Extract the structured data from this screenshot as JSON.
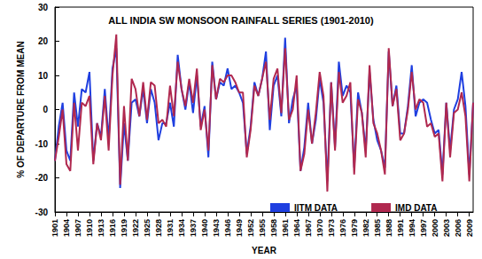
{
  "chart_data": {
    "type": "line",
    "title": "ALL INDIA SW MONSOON RAINFALL SERIES (1901-2010)",
    "x_label": "YEAR",
    "y_label": "% OF DEPARTURE FROM MEAN",
    "categories": [
      "1901",
      null,
      null,
      "1904",
      null,
      null,
      "1907",
      null,
      null,
      "1910",
      null,
      null,
      "1913",
      null,
      null,
      "1916",
      null,
      null,
      "1919",
      null,
      null,
      "1922",
      null,
      null,
      "1925",
      null,
      null,
      "1928",
      null,
      null,
      "1931",
      null,
      null,
      "1934",
      null,
      null,
      "1937",
      null,
      null,
      "1940",
      null,
      null,
      "1943",
      null,
      null,
      "1946",
      null,
      null,
      "1949",
      null,
      null,
      "1952",
      null,
      null,
      "1955",
      null,
      null,
      "1958",
      null,
      null,
      "1961",
      null,
      null,
      "1964",
      null,
      null,
      "1967",
      null,
      null,
      "1970",
      null,
      null,
      "1973",
      null,
      null,
      "1976",
      null,
      null,
      "1979",
      null,
      null,
      "1982",
      null,
      null,
      "1985",
      null,
      null,
      "1988",
      null,
      null,
      "1991",
      null,
      null,
      "1994",
      null,
      null,
      "1997",
      null,
      null,
      "2000",
      null,
      null,
      "2003",
      null,
      null,
      "2006",
      null,
      null,
      "2009",
      null
    ],
    "series": [
      {
        "name": "IITM DATA",
        "color": "#1f3fe0",
        "values": [
          -15,
          -5,
          2,
          -12,
          -15,
          5,
          -5,
          6,
          5,
          11,
          -15,
          -4,
          -8,
          6,
          -9,
          12,
          18,
          -23,
          -4,
          -15,
          2,
          3,
          -2,
          6,
          -4,
          6,
          2,
          -9,
          -4,
          -4,
          2,
          -5,
          16,
          6,
          0,
          8,
          -1,
          10,
          -5,
          1,
          -14,
          14,
          3,
          8,
          7,
          12,
          6,
          7,
          5,
          2,
          -13,
          -5,
          8,
          4,
          9,
          17,
          -6,
          7,
          10,
          -2,
          21,
          -4,
          3,
          7,
          -18,
          -11,
          2,
          -10,
          -3,
          9,
          2,
          -21,
          8,
          -11,
          14,
          4,
          7,
          5,
          -17,
          5,
          -1,
          -12,
          11,
          -3,
          -9,
          -12,
          -17,
          17,
          1,
          7,
          -7,
          -7,
          1,
          13,
          -2,
          2,
          3,
          2,
          -3,
          -7,
          -6,
          -19,
          2,
          -12,
          0,
          3,
          11,
          1,
          -19,
          2
        ]
      },
      {
        "name": "IMD DATA",
        "color": "#b0284f",
        "values": [
          -15,
          -8,
          0,
          -16,
          -18,
          2,
          -12,
          2,
          1,
          4,
          -16,
          -4,
          -9,
          4,
          -12,
          10,
          22,
          -22,
          1,
          -15,
          9,
          6,
          -2,
          8,
          -3,
          8,
          7,
          -4,
          -3,
          -5,
          7,
          -2,
          14,
          6,
          1,
          9,
          2,
          12,
          -6,
          0,
          -12,
          13,
          3,
          9,
          8,
          10,
          10,
          8,
          5,
          5,
          -14,
          -6,
          7,
          4,
          9,
          14,
          -3,
          9,
          12,
          -1,
          18,
          -3,
          0,
          10,
          -18,
          -13,
          0,
          -10,
          -1,
          11,
          4,
          -24,
          8,
          -12,
          11,
          2,
          4,
          8,
          -19,
          3,
          -1,
          -14,
          13,
          -4,
          -7,
          -12,
          -19,
          18,
          1,
          6,
          -9,
          -7,
          0,
          11,
          0,
          3,
          2,
          -5,
          -4,
          -8,
          -7,
          -21,
          2,
          -14,
          -1,
          0,
          5,
          -2,
          -21,
          2
        ]
      }
    ],
    "ylim": [
      -30,
      30
    ],
    "yticks": [
      -30,
      -20,
      -10,
      0,
      10,
      20,
      30
    ],
    "grid": false,
    "legend": "bottom"
  }
}
